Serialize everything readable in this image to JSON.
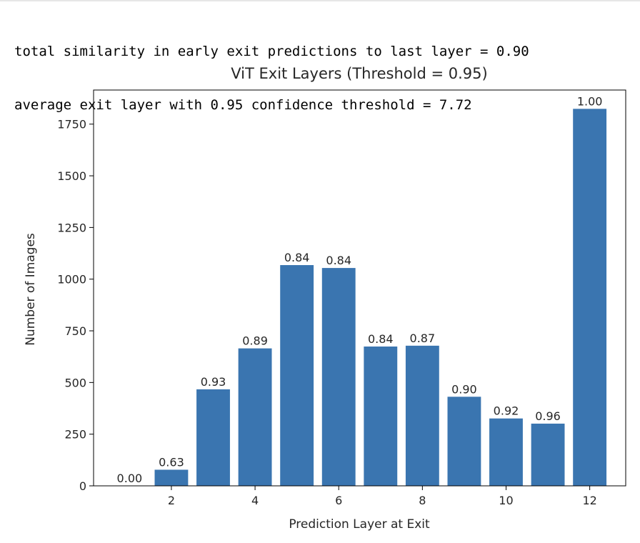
{
  "console_output": {
    "line1": "total similarity in early exit predictions to last layer = 0.90",
    "line2": "average exit layer with 0.95 confidence threshold = 7.72"
  },
  "chart_data": {
    "type": "bar",
    "title": "ViT Exit Layers (Threshold = 0.95)",
    "xlabel": "Prediction Layer at Exit",
    "ylabel": "Number of Images",
    "x": [
      1,
      2,
      3,
      4,
      5,
      6,
      7,
      8,
      9,
      10,
      11,
      12
    ],
    "values": [
      0,
      78,
      467,
      665,
      1068,
      1054,
      674,
      678,
      431,
      326,
      301,
      1824
    ],
    "bar_labels": [
      "0.00",
      "0.63",
      "0.93",
      "0.89",
      "0.84",
      "0.84",
      "0.84",
      "0.87",
      "0.90",
      "0.92",
      "0.96",
      "1.00"
    ],
    "xticks": [
      2,
      4,
      6,
      8,
      10,
      12
    ],
    "yticks": [
      0,
      250,
      500,
      750,
      1000,
      1250,
      1500,
      1750
    ],
    "xlim": [
      0.14,
      12.86
    ],
    "ylim": [
      0,
      1915
    ],
    "bar_color": "#3a75b0",
    "grid": false
  }
}
